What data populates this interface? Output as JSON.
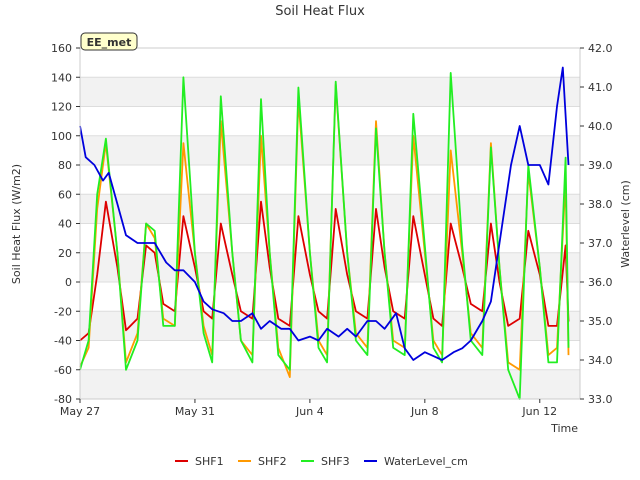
{
  "chart_data": {
    "type": "line",
    "title": "Soil Heat Flux",
    "badge": "EE_met",
    "xlabel": "Time",
    "ylabel": "Soil Heat Flux (W/m2)",
    "y2label": "Waterlevel (cm)",
    "xlim": [
      0,
      17.4
    ],
    "ylim": [
      -80,
      160
    ],
    "y2lim": [
      33.0,
      42.0
    ],
    "x_ticks": [
      {
        "pos": 0,
        "label": "May 27"
      },
      {
        "pos": 4,
        "label": "May 31"
      },
      {
        "pos": 8,
        "label": "Jun 4"
      },
      {
        "pos": 12,
        "label": "Jun 8"
      },
      {
        "pos": 16,
        "label": "Jun 12"
      }
    ],
    "y_ticks": [
      -80,
      -60,
      -40,
      -20,
      0,
      20,
      40,
      60,
      80,
      100,
      120,
      140,
      160
    ],
    "y2_ticks": [
      "33.0",
      "34.0",
      "35.0",
      "36.0",
      "37.0",
      "38.0",
      "39.0",
      "40.0",
      "41.0",
      "42.0"
    ],
    "grid": true,
    "legend_position": "bottom",
    "series": [
      {
        "name": "SHF1",
        "color": "#dd0000",
        "axis": "left",
        "x": [
          0,
          0.3,
          0.6,
          0.9,
          1.3,
          1.6,
          2.0,
          2.3,
          2.6,
          2.9,
          3.3,
          3.6,
          4.0,
          4.3,
          4.6,
          4.9,
          5.3,
          5.6,
          6.0,
          6.3,
          6.6,
          6.9,
          7.3,
          7.6,
          8.0,
          8.3,
          8.6,
          8.9,
          9.3,
          9.6,
          10.0,
          10.3,
          10.6,
          10.9,
          11.3,
          11.6,
          12.0,
          12.3,
          12.6,
          12.9,
          13.3,
          13.6,
          14.0,
          14.3,
          14.6,
          14.9,
          15.3,
          15.6,
          16.0,
          16.3,
          16.6,
          16.9,
          17.0
        ],
        "y": [
          -40,
          -35,
          5,
          55,
          10,
          -33,
          -25,
          25,
          20,
          -15,
          -20,
          45,
          10,
          -20,
          -25,
          40,
          5,
          -20,
          -25,
          55,
          10,
          -25,
          -30,
          45,
          5,
          -20,
          -25,
          50,
          5,
          -20,
          -25,
          50,
          10,
          -20,
          -25,
          45,
          5,
          -25,
          -30,
          40,
          10,
          -15,
          -20,
          40,
          0,
          -30,
          -25,
          35,
          5,
          -30,
          -30,
          25,
          -27
        ]
      },
      {
        "name": "SHF2",
        "color": "#ff9900",
        "axis": "left",
        "x": [
          0,
          0.3,
          0.6,
          0.9,
          1.3,
          1.6,
          2.0,
          2.3,
          2.6,
          2.9,
          3.3,
          3.6,
          4.0,
          4.3,
          4.6,
          4.9,
          5.3,
          5.6,
          6.0,
          6.3,
          6.6,
          6.9,
          7.3,
          7.6,
          8.0,
          8.3,
          8.6,
          8.9,
          9.3,
          9.6,
          10.0,
          10.3,
          10.6,
          10.9,
          11.3,
          11.6,
          12.0,
          12.3,
          12.6,
          12.9,
          13.3,
          13.6,
          14.0,
          14.3,
          14.6,
          14.9,
          15.3,
          15.6,
          16.0,
          16.3,
          16.6,
          16.9,
          17.0
        ],
        "y": [
          -58,
          -45,
          50,
          95,
          20,
          -55,
          -35,
          40,
          30,
          -25,
          -30,
          95,
          20,
          -30,
          -50,
          110,
          20,
          -40,
          -50,
          100,
          20,
          -45,
          -65,
          125,
          20,
          -40,
          -50,
          135,
          20,
          -35,
          -45,
          110,
          20,
          -40,
          -45,
          100,
          20,
          -40,
          -50,
          90,
          20,
          -35,
          -45,
          95,
          10,
          -55,
          -60,
          75,
          10,
          -50,
          -45,
          70,
          -50
        ]
      },
      {
        "name": "SHF3",
        "color": "#22ee22",
        "axis": "left",
        "x": [
          0,
          0.3,
          0.6,
          0.9,
          1.3,
          1.6,
          2.0,
          2.3,
          2.6,
          2.9,
          3.3,
          3.6,
          4.0,
          4.3,
          4.6,
          4.9,
          5.3,
          5.6,
          6.0,
          6.3,
          6.6,
          6.9,
          7.3,
          7.6,
          8.0,
          8.3,
          8.6,
          8.9,
          9.3,
          9.6,
          10.0,
          10.3,
          10.6,
          10.9,
          11.3,
          11.6,
          12.0,
          12.3,
          12.6,
          12.9,
          13.3,
          13.6,
          14.0,
          14.3,
          14.6,
          14.9,
          15.3,
          15.6,
          16.0,
          16.3,
          16.6,
          16.9,
          17.0
        ],
        "y": [
          -60,
          -40,
          60,
          98,
          20,
          -60,
          -40,
          40,
          35,
          -30,
          -30,
          140,
          20,
          -35,
          -55,
          127,
          20,
          -40,
          -55,
          125,
          20,
          -50,
          -60,
          133,
          20,
          -45,
          -55,
          137,
          20,
          -40,
          -50,
          105,
          20,
          -45,
          -50,
          115,
          25,
          -45,
          -55,
          143,
          25,
          -40,
          -50,
          92,
          10,
          -60,
          -80,
          80,
          10,
          -55,
          -55,
          85,
          -45
        ]
      },
      {
        "name": "WaterLevel_cm",
        "color": "#0000dd",
        "axis": "right",
        "x": [
          0,
          0.2,
          0.5,
          0.8,
          1.0,
          1.3,
          1.6,
          2.0,
          2.3,
          2.6,
          3.0,
          3.3,
          3.6,
          4.0,
          4.3,
          4.6,
          5.0,
          5.3,
          5.6,
          6.0,
          6.3,
          6.6,
          7.0,
          7.3,
          7.6,
          8.0,
          8.3,
          8.6,
          9.0,
          9.3,
          9.6,
          10.0,
          10.3,
          10.6,
          11.0,
          11.3,
          11.6,
          12.0,
          12.3,
          12.6,
          13.0,
          13.3,
          13.6,
          14.0,
          14.3,
          14.6,
          15.0,
          15.3,
          15.6,
          16.0,
          16.3,
          16.6,
          16.8,
          17.0
        ],
        "y": [
          40.0,
          39.2,
          39.0,
          38.6,
          38.8,
          38.0,
          37.2,
          37.0,
          37.0,
          37.0,
          36.5,
          36.3,
          36.3,
          36.0,
          35.5,
          35.3,
          35.2,
          35.0,
          35.0,
          35.2,
          34.8,
          35.0,
          34.8,
          34.8,
          34.5,
          34.6,
          34.5,
          34.8,
          34.6,
          34.8,
          34.6,
          35.0,
          35.0,
          34.8,
          35.2,
          34.3,
          34.0,
          34.2,
          34.1,
          34.0,
          34.2,
          34.3,
          34.5,
          35.0,
          35.5,
          37.0,
          39.0,
          40.0,
          39.0,
          39.0,
          38.5,
          40.5,
          41.5,
          39.0
        ]
      }
    ]
  }
}
